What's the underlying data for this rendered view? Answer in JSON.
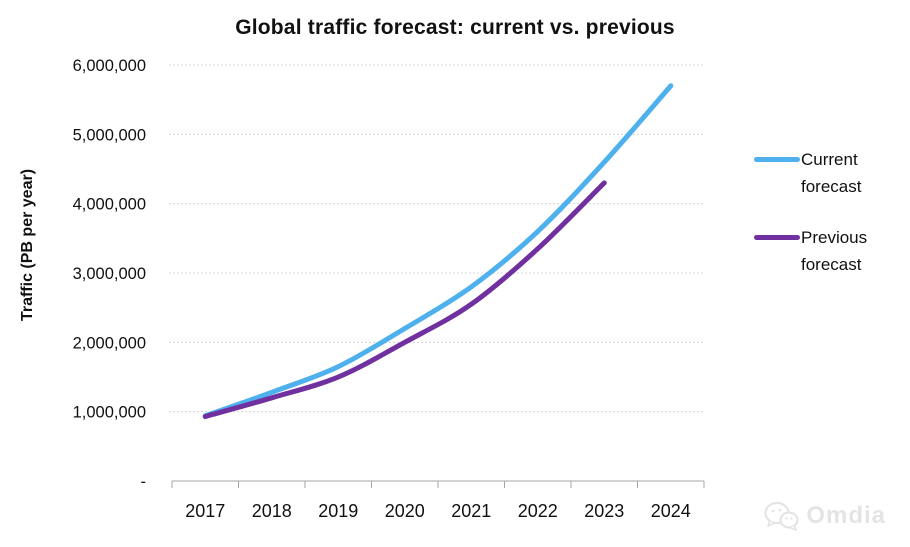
{
  "title": "Global traffic forecast: current vs. previous",
  "y_axis_title": "Traffic (PB per year)",
  "legend": [
    {
      "label": "Current forecast",
      "color": "#4EB1ED"
    },
    {
      "label": "Previous forecast",
      "color": "#7030A0"
    }
  ],
  "watermark": {
    "brand": "Omdia",
    "icon": "wechat-bubbles-icon"
  },
  "chart_data": {
    "type": "line",
    "title": "Global traffic forecast: current vs. previous",
    "xlabel": "",
    "ylabel": "Traffic (PB per year)",
    "categories": [
      "2017",
      "2018",
      "2019",
      "2020",
      "2021",
      "2022",
      "2023",
      "2024"
    ],
    "series": [
      {
        "name": "Current forecast",
        "color": "#4EB1ED",
        "values": [
          940000,
          1280000,
          1650000,
          2200000,
          2800000,
          3600000,
          4600000,
          5700000
        ]
      },
      {
        "name": "Previous forecast",
        "color": "#7030A0",
        "values": [
          930000,
          1200000,
          1500000,
          2000000,
          2550000,
          3350000,
          4300000,
          null
        ]
      }
    ],
    "ylim": [
      0,
      6000000
    ],
    "y_ticks": [
      {
        "value": 0,
        "label": "-"
      },
      {
        "value": 1000000,
        "label": "1,000,000"
      },
      {
        "value": 2000000,
        "label": "2,000,000"
      },
      {
        "value": 3000000,
        "label": "3,000,000"
      },
      {
        "value": 4000000,
        "label": "4,000,000"
      },
      {
        "value": 5000000,
        "label": "5,000,000"
      },
      {
        "value": 6000000,
        "label": "6,000,000"
      }
    ],
    "grid": "horizontal-dashed",
    "legend_position": "right",
    "line_style": "smooth"
  }
}
